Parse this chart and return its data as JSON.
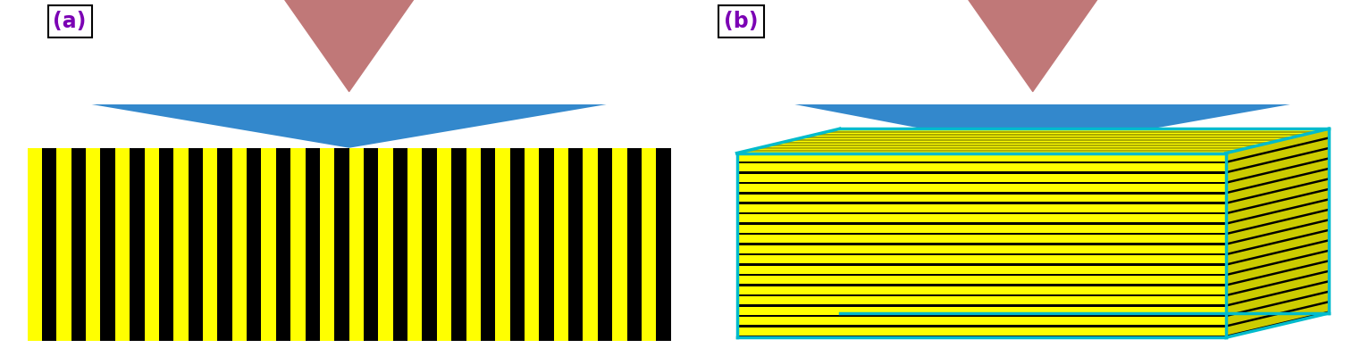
{
  "fig_width": 15.32,
  "fig_height": 3.9,
  "bg_color": "#ffffff",
  "label_a_text": "(a)",
  "label_b_text": "(b)",
  "label_color": "#7B00B4",
  "arrow_color": "#C07878",
  "arrow_edge_color": "#000000",
  "indenter_color": "#3388CC",
  "yellow_color": "#FFFF00",
  "black_color": "#000000",
  "cyan_color": "#00BBCC",
  "n_stripes_a": 22,
  "n_stripes_b": 18
}
